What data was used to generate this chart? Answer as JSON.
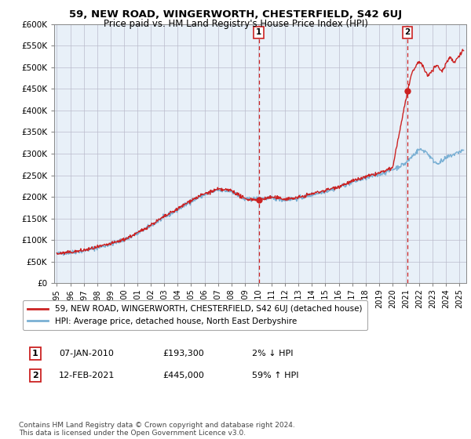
{
  "title": "59, NEW ROAD, WINGERWORTH, CHESTERFIELD, S42 6UJ",
  "subtitle": "Price paid vs. HM Land Registry's House Price Index (HPI)",
  "ylabel_ticks": [
    "£0",
    "£50K",
    "£100K",
    "£150K",
    "£200K",
    "£250K",
    "£300K",
    "£350K",
    "£400K",
    "£450K",
    "£500K",
    "£550K",
    "£600K"
  ],
  "ytick_vals": [
    0,
    50000,
    100000,
    150000,
    200000,
    250000,
    300000,
    350000,
    400000,
    450000,
    500000,
    550000,
    600000
  ],
  "ylim": [
    0,
    600000
  ],
  "xlim_start": 1994.8,
  "xlim_end": 2025.5,
  "x_ticks": [
    1995,
    1996,
    1997,
    1998,
    1999,
    2000,
    2001,
    2002,
    2003,
    2004,
    2005,
    2006,
    2007,
    2008,
    2009,
    2010,
    2011,
    2012,
    2013,
    2014,
    2015,
    2016,
    2017,
    2018,
    2019,
    2020,
    2021,
    2022,
    2023,
    2024,
    2025
  ],
  "hpi_color": "#7ab0d4",
  "price_color": "#cc2222",
  "chart_bg": "#e8f0f8",
  "marker1_x": 2010.04,
  "marker1_y": 193300,
  "marker1_label": "1",
  "marker1_date": "07-JAN-2010",
  "marker1_price": "£193,300",
  "marker1_hpi": "2% ↓ HPI",
  "marker2_x": 2021.12,
  "marker2_y": 445000,
  "marker2_label": "2",
  "marker2_date": "12-FEB-2021",
  "marker2_price": "£445,000",
  "marker2_hpi": "59% ↑ HPI",
  "legend_line1": "59, NEW ROAD, WINGERWORTH, CHESTERFIELD, S42 6UJ (detached house)",
  "legend_line2": "HPI: Average price, detached house, North East Derbyshire",
  "footnote": "Contains HM Land Registry data © Crown copyright and database right 2024.\nThis data is licensed under the Open Government Licence v3.0.",
  "bg_color": "#ffffff",
  "grid_color": "#bbbbcc"
}
